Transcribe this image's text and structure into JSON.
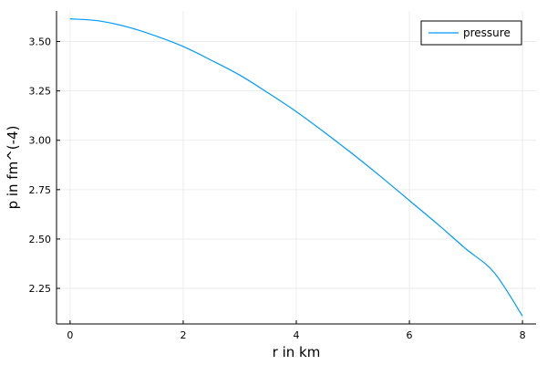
{
  "chart_data": {
    "type": "line",
    "title": "",
    "xlabel": "r in km",
    "ylabel": "p in fm^(-4)",
    "xlim": [
      -0.24,
      8.24
    ],
    "ylim": [
      2.07,
      3.655
    ],
    "xticks": [
      0,
      2,
      4,
      6,
      8
    ],
    "yticks": [
      2.25,
      2.5,
      2.75,
      3.0,
      3.25,
      3.5
    ],
    "xtick_labels": [
      "0",
      "2",
      "4",
      "6",
      "8"
    ],
    "ytick_labels": [
      "2.25",
      "2.50",
      "2.75",
      "3.00",
      "3.25",
      "3.50"
    ],
    "grid": true,
    "legend_position": "top-right",
    "series": [
      {
        "name": "pressure",
        "color": "#009af9",
        "x": [
          0,
          0.5,
          1,
          1.5,
          2,
          2.5,
          3,
          3.5,
          4,
          4.5,
          5,
          5.5,
          6,
          6.5,
          7,
          7.5,
          8
        ],
        "y": [
          3.615,
          3.605,
          3.575,
          3.53,
          3.475,
          3.405,
          3.33,
          3.24,
          3.145,
          3.04,
          2.93,
          2.815,
          2.695,
          2.575,
          2.45,
          2.33,
          2.11
        ]
      }
    ]
  }
}
